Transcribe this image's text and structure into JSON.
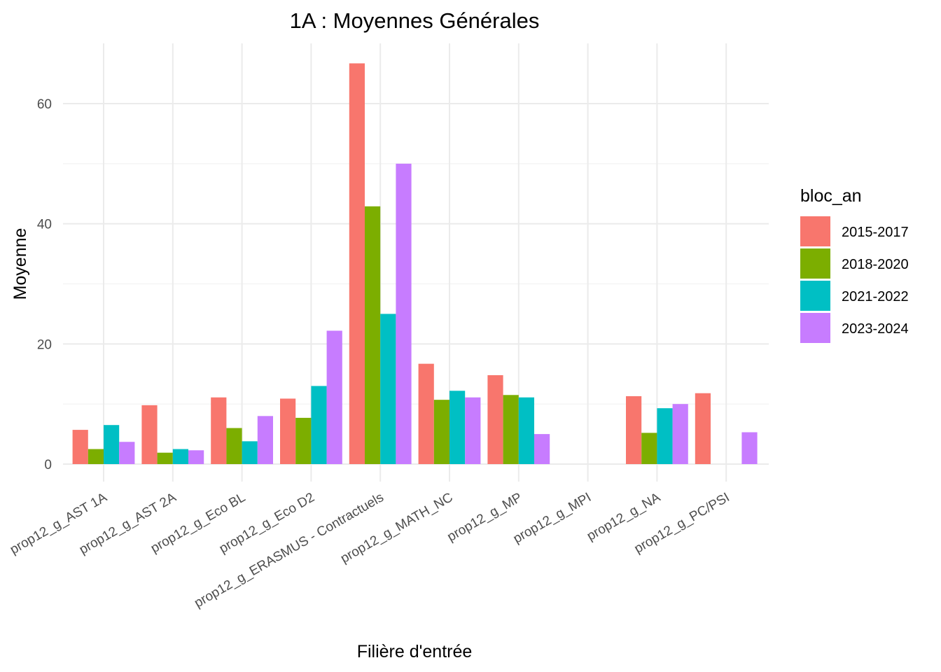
{
  "chart_data": {
    "type": "bar",
    "title": "1A : Moyennes Générales",
    "xlabel": "Filière d'entrée",
    "ylabel": "Moyenne",
    "ylim": [
      -3,
      70
    ],
    "y_ticks": [
      0,
      20,
      40,
      60
    ],
    "grid": true,
    "legend_title": "bloc_an",
    "legend_position": "right",
    "categories": [
      "prop12_g_AST 1A",
      "prop12_g_AST 2A",
      "prop12_g_Eco BL",
      "prop12_g_Eco D2",
      "prop12_g_ERASMUS - Contractuels",
      "prop12_g_MATH_NC",
      "prop12_g_MP",
      "prop12_g_MPI",
      "prop12_g_NA",
      "prop12_g_PC/PSI"
    ],
    "series": [
      {
        "name": "2015-2017",
        "color": "#F8766D",
        "values": [
          5.7,
          9.8,
          11.1,
          10.9,
          66.7,
          16.7,
          14.8,
          null,
          11.3,
          11.8
        ]
      },
      {
        "name": "2018-2020",
        "color": "#7CAE00",
        "values": [
          2.5,
          1.9,
          6.0,
          7.7,
          42.9,
          10.7,
          11.5,
          null,
          5.2,
          null
        ]
      },
      {
        "name": "2021-2022",
        "color": "#00BFC4",
        "values": [
          6.5,
          2.5,
          3.8,
          13.0,
          25.0,
          12.2,
          11.1,
          null,
          9.3,
          null
        ]
      },
      {
        "name": "2023-2024",
        "color": "#C77CFF",
        "values": [
          3.7,
          2.3,
          8.0,
          22.2,
          50.0,
          11.1,
          5.0,
          null,
          10.0,
          5.3
        ]
      }
    ]
  }
}
